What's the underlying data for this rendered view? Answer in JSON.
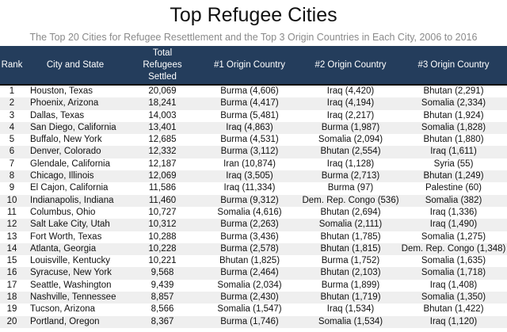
{
  "title": "Top Refugee Cities",
  "subtitle": "The Top 20 Cities for Refugee Resettlement and the Top 3 Origin Countries in Each City, 2006 to 2016",
  "colors": {
    "header_bg": "#243d5c",
    "alt_row": "#efefef"
  },
  "columns": [
    "Rank",
    "City and State",
    "Total Refugees Settled",
    "#1 Origin Country",
    "#2 Origin Country",
    "#3 Origin Country"
  ],
  "rows": [
    [
      "1",
      "Houston, Texas",
      "20,069",
      "Burma (4,606)",
      "Iraq (4,420)",
      "Bhutan (2,291)"
    ],
    [
      "2",
      "Phoenix, Arizona",
      "18,241",
      "Burma (4,417)",
      "Iraq (4,194)",
      "Somalia (2,334)"
    ],
    [
      "3",
      "Dallas, Texas",
      "14,003",
      "Burma (5,481)",
      "Iraq (2,217)",
      "Bhutan (1,924)"
    ],
    [
      "4",
      "San Diego, California",
      "13,401",
      "Iraq (4,863)",
      "Burma (1,987)",
      "Somalia (1,828)"
    ],
    [
      "5",
      "Buffalo, New York",
      "12,685",
      "Burma (4,531)",
      "Somalia (2,094)",
      "Bhutan (1,880)"
    ],
    [
      "6",
      "Denver, Colorado",
      "12,332",
      "Burma (3,112)",
      "Bhutan (2,554)",
      "Iraq (1,611)"
    ],
    [
      "7",
      "Glendale, California",
      "12,187",
      "Iran (10,874)",
      "Iraq (1,128)",
      "Syria (55)"
    ],
    [
      "8",
      "Chicago, Illinois",
      "12,069",
      "Iraq (3,505)",
      "Burma (2,713)",
      "Bhutan (1,249)"
    ],
    [
      "9",
      "El Cajon, California",
      "11,586",
      "Iraq (11,334)",
      "Burma (97)",
      "Palestine (60)"
    ],
    [
      "10",
      "Indianapolis, Indiana",
      "11,460",
      "Burma (9,312)",
      "Dem. Rep. Congo (536)",
      "Somalia (382)"
    ],
    [
      "11",
      "Columbus, Ohio",
      "10,727",
      "Somalia (4,616)",
      "Bhutan (2,694)",
      "Iraq (1,336)"
    ],
    [
      "12",
      "Salt Lake City, Utah",
      "10,312",
      "Burma (2,263)",
      "Somalia (2,111)",
      "Iraq (1,490)"
    ],
    [
      "13",
      "Fort Worth, Texas",
      "10,288",
      "Burma (3,436)",
      "Bhutan (1,785)",
      "Somalia (1,275)"
    ],
    [
      "14",
      "Atlanta, Georgia",
      "10,228",
      "Burma (2,578)",
      "Bhutan (1,815)",
      "Dem. Rep. Congo (1,348)"
    ],
    [
      "15",
      "Louisville, Kentucky",
      "10,221",
      "Bhutan (1,825)",
      "Burma (1,752)",
      "Somalia (1,635)"
    ],
    [
      "16",
      "Syracuse, New York",
      "9,568",
      "Burma (2,464)",
      "Bhutan (2,103)",
      "Somalia (1,718)"
    ],
    [
      "17",
      "Seattle, Washington",
      "9,439",
      "Somalia (2,034)",
      "Burma (1,899)",
      "Iraq (1,408)"
    ],
    [
      "18",
      "Nashville, Tennessee",
      "8,857",
      "Burma (2,430)",
      "Bhutan (1,719)",
      "Somalia (1,350)"
    ],
    [
      "19",
      "Tucson, Arizona",
      "8,566",
      "Somalia (1,547)",
      "Iraq (1,534)",
      "Bhutan (1,422)"
    ],
    [
      "20",
      "Portland, Oregon",
      "8,367",
      "Burma (1,746)",
      "Somalia (1,534)",
      "Iraq (1,120)"
    ]
  ]
}
